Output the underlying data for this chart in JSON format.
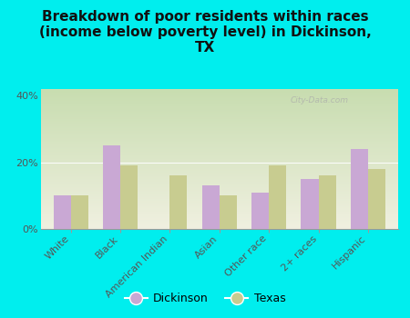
{
  "title": "Breakdown of poor residents within races\n(income below poverty level) in Dickinson,\nTX",
  "categories": [
    "White",
    "Black",
    "American Indian",
    "Asian",
    "Other race",
    "2+ races",
    "Hispanic"
  ],
  "dickinson": [
    10,
    25,
    0,
    13,
    11,
    15,
    24
  ],
  "texas": [
    10,
    19,
    16,
    10,
    19,
    16,
    18
  ],
  "dickinson_color": "#c9a8d4",
  "texas_color": "#c8cc90",
  "bg_color": "#00eeee",
  "plot_bg_top": "#c8ddb0",
  "plot_bg_bottom": "#f0f0e0",
  "ylim": [
    0,
    42
  ],
  "yticks": [
    0,
    20,
    40
  ],
  "ytick_labels": [
    "0%",
    "20%",
    "40%"
  ],
  "bar_width": 0.35,
  "legend_labels": [
    "Dickinson",
    "Texas"
  ],
  "watermark": "City-Data.com",
  "title_fontsize": 11,
  "tick_fontsize": 8,
  "legend_fontsize": 9
}
